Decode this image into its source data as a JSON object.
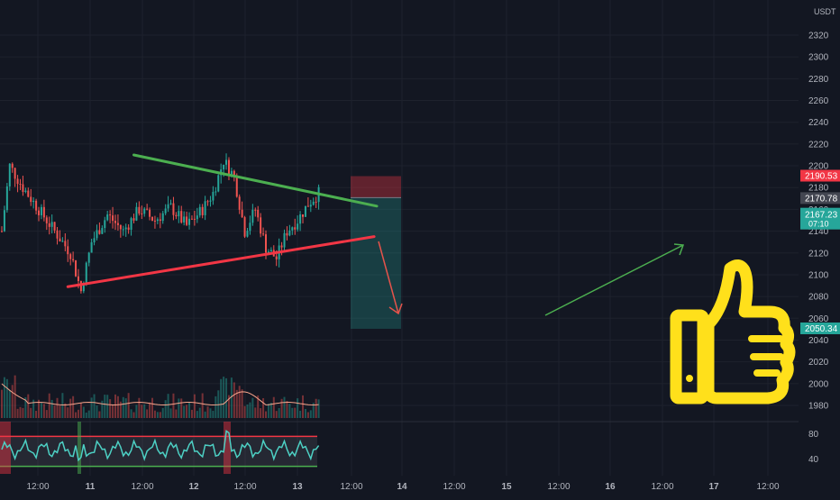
{
  "colors": {
    "background": "#131722",
    "axis_text": "#b2b5be",
    "up": "#26a69a",
    "down": "#ef5350",
    "trend_upper": "#4caf50",
    "trend_lower": "#f23645",
    "ma": "#f7a48b",
    "rsi": "#4dd0c4",
    "thumb": "#ffe01b"
  },
  "price_axis": {
    "currency": "USDT",
    "ticks": [
      "2320",
      "2300",
      "2280",
      "2260",
      "2240",
      "2220",
      "2200",
      "2180",
      "2160",
      "2140",
      "2120",
      "2100",
      "2080",
      "2060",
      "2040",
      "2020",
      "2000",
      "1980"
    ]
  },
  "rsi_axis": {
    "ticks": [
      "80",
      "40"
    ]
  },
  "time_axis": {
    "ticks": [
      "12:00",
      "11",
      "12:00",
      "12",
      "12:00",
      "13",
      "12:00",
      "14",
      "12:00",
      "15",
      "12:00",
      "16",
      "12:00",
      "17",
      "12:00"
    ]
  },
  "badges": {
    "stop": "2190.53",
    "entry": "2170.78",
    "last": "2167.23",
    "countdown": "07:10",
    "target": "2050.34"
  },
  "chart_data": {
    "type": "candlestick",
    "quote": "USDT",
    "ylim": [
      1970,
      2330
    ],
    "x_ticks": [
      "12:00",
      "11",
      "12:00",
      "12",
      "12:00",
      "13",
      "12:00",
      "14",
      "12:00",
      "15",
      "12:00",
      "16",
      "12:00",
      "17",
      "12:00"
    ],
    "price_path": [
      [
        0,
        2140
      ],
      [
        3,
        2200
      ],
      [
        8,
        2180
      ],
      [
        14,
        2160
      ],
      [
        20,
        2140
      ],
      [
        26,
        2120
      ],
      [
        30,
        2085
      ],
      [
        34,
        2130
      ],
      [
        40,
        2155
      ],
      [
        46,
        2140
      ],
      [
        52,
        2160
      ],
      [
        58,
        2150
      ],
      [
        64,
        2162
      ],
      [
        70,
        2145
      ],
      [
        76,
        2160
      ],
      [
        80,
        2175
      ],
      [
        84,
        2205
      ],
      [
        88,
        2190
      ],
      [
        92,
        2140
      ],
      [
        96,
        2160
      ],
      [
        100,
        2125
      ],
      [
        104,
        2115
      ],
      [
        108,
        2140
      ],
      [
        112,
        2150
      ],
      [
        116,
        2165
      ],
      [
        120,
        2175
      ]
    ],
    "last_price": 2167.23,
    "trendlines": [
      {
        "role": "upper",
        "from": [
          50,
          2210
        ],
        "to": [
          142,
          2163
        ]
      },
      {
        "role": "lower",
        "from": [
          25,
          2089
        ],
        "to": [
          141,
          2135
        ]
      }
    ],
    "short_position": {
      "entry": 2170.78,
      "stop": 2190.53,
      "target": 2050.34
    },
    "rsi": {
      "ylim": [
        20,
        100
      ],
      "upper": 80,
      "lower": 30
    }
  }
}
